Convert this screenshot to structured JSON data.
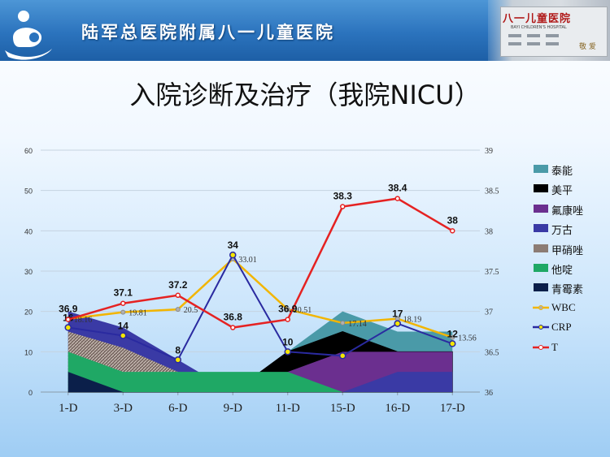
{
  "header": {
    "hospital_name": "陆军总医院附属八一儿童医院",
    "photo_sign": "八一儿童医院",
    "photo_sub": "BAYI CHILDREN'S HOSPITAL",
    "photo_side": "敬 爱"
  },
  "title": "入院诊断及治疗（我院NICU）",
  "chart_data": {
    "type": "line",
    "categories": [
      "1-D",
      "3-D",
      "6-D",
      "9-D",
      "11-D",
      "15-D",
      "16-D",
      "17-D"
    ],
    "y_left": {
      "min": 0,
      "max": 60,
      "ticks": [
        "0",
        "10",
        "20",
        "30",
        "40",
        "50",
        "60"
      ]
    },
    "y_right": {
      "min": 36,
      "max": 39,
      "ticks": [
        "36",
        "36.5",
        "37",
        "37.5",
        "38",
        "38.5",
        "39"
      ]
    },
    "grid": true,
    "legend_position": "right",
    "areas": [
      {
        "name": "泰能",
        "color": "#4a9aa8",
        "values": [
          0,
          0,
          0,
          0,
          10,
          20,
          15,
          15
        ]
      },
      {
        "name": "美平",
        "color": "#000000",
        "values": [
          0,
          0,
          0,
          0,
          10,
          15,
          10,
          10
        ]
      },
      {
        "name": "氟康唑",
        "color": "#6b2f8f",
        "values": [
          0,
          0,
          0,
          0,
          5,
          10,
          10,
          10
        ]
      },
      {
        "name": "万古",
        "color": "#3a3aa5",
        "values": [
          20,
          16,
          8,
          0,
          0,
          0,
          5,
          5
        ]
      },
      {
        "name": "甲硝唑",
        "color": "#8c7c74",
        "values": [
          15,
          11,
          5,
          0,
          0,
          0,
          0,
          0
        ]
      },
      {
        "name": "他啶",
        "color": "#1fa865",
        "values": [
          10,
          5,
          5,
          5,
          5,
          0,
          0,
          0
        ]
      },
      {
        "name": "青霉素",
        "color": "#0b1f4a",
        "values": [
          5,
          0,
          0,
          0,
          0,
          0,
          0,
          0
        ]
      }
    ],
    "lines": [
      {
        "name": "WBC",
        "color": "#f2b500",
        "axis": "left",
        "values": [
          18.16,
          19.81,
          20.5,
          33.01,
          20.51,
          17.14,
          18.19,
          13.56
        ],
        "labels": [
          "18.16",
          "19.81",
          "20.5",
          "33.01",
          "20.51",
          "17.14",
          "18.19",
          "13.56"
        ]
      },
      {
        "name": "CRP",
        "color": "#2a2aa0",
        "axis": "left",
        "values": [
          16,
          14,
          8,
          34,
          10,
          9,
          17,
          12
        ],
        "labels": [
          "16",
          "14",
          "8",
          "34",
          "10",
          "",
          "17",
          "12"
        ]
      },
      {
        "name": "T",
        "color": "#e52222",
        "axis": "right",
        "values": [
          36.9,
          37.1,
          37.2,
          36.8,
          36.9,
          38.3,
          38.4,
          38
        ],
        "labels": [
          "36.9",
          "37.1",
          "37.2",
          "36.8",
          "36.9",
          "38.3",
          "38.4",
          "38"
        ]
      }
    ]
  }
}
